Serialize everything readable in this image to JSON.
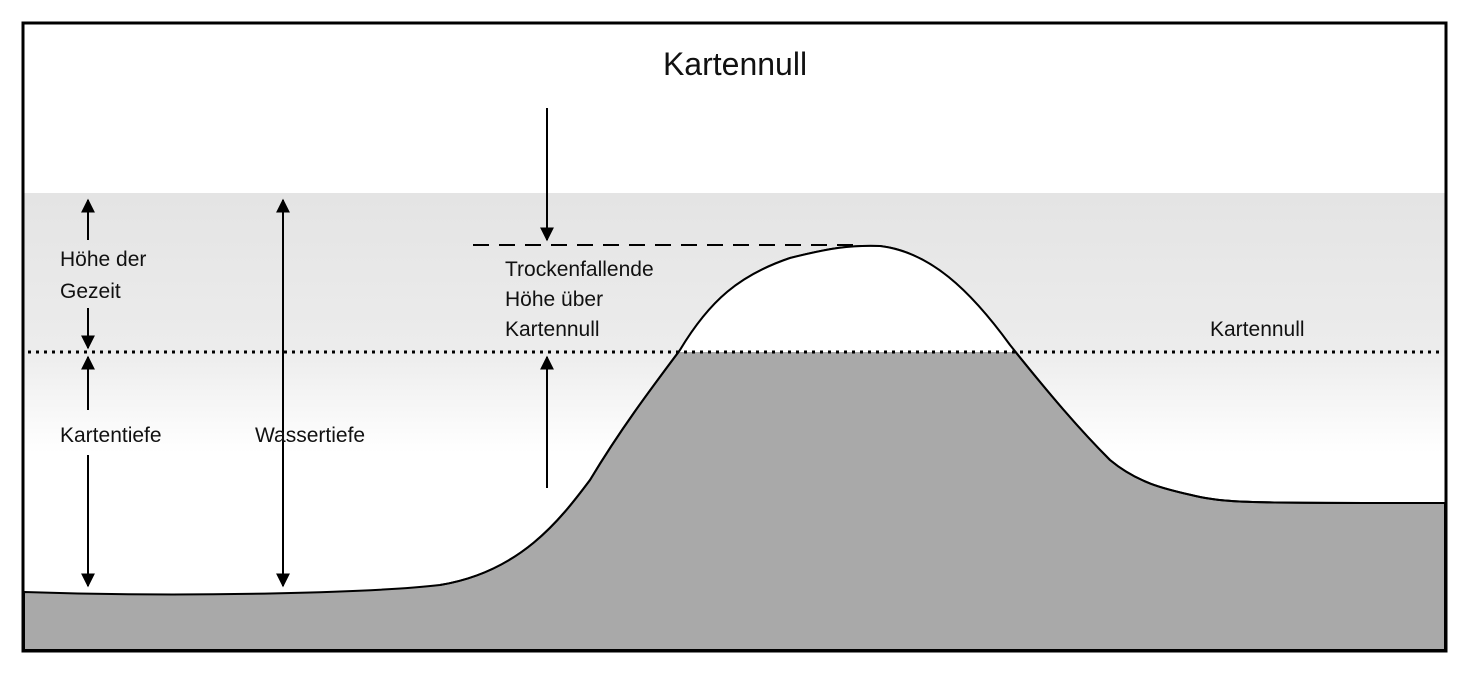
{
  "title": "Kartennull",
  "labels": {
    "tide_height": [
      "Höhe der",
      "Gezeit"
    ],
    "chart_depth": "Kartentiefe",
    "water_depth": "Wassertiefe",
    "drying_height": [
      "Trockenfallende",
      "Höhe über",
      "Kartennull"
    ],
    "datum_line": "Kartennull"
  }
}
